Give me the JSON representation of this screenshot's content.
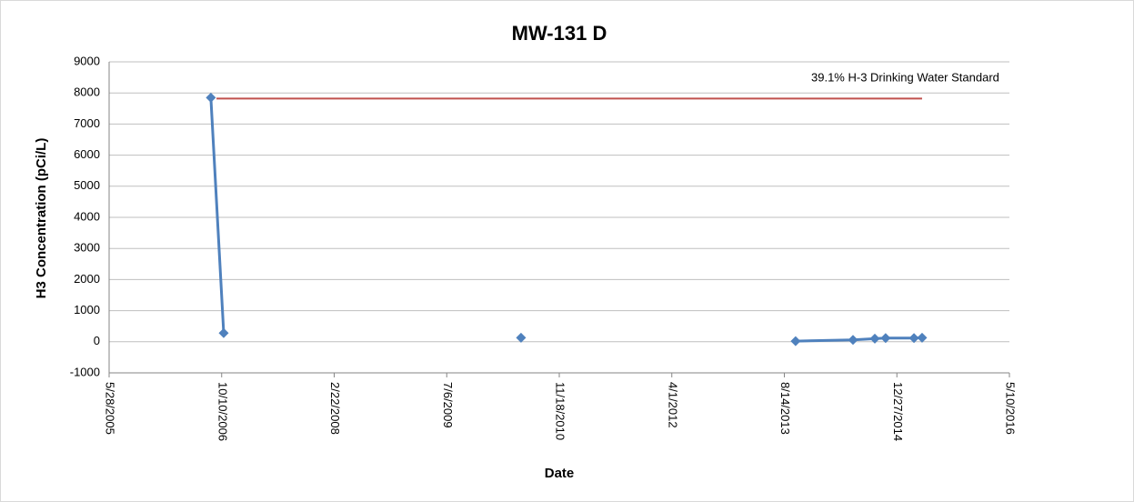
{
  "chart_data": {
    "type": "line",
    "title": "MW-131 D",
    "x_label": "Date",
    "y_label": "H3 Concentration (pCi/L)",
    "x": [
      "8/23/2006",
      "10/19/2006",
      null,
      "6/1/2010",
      null,
      "10/3/2013",
      "6/15/2014",
      "9/20/2014",
      "11/7/2014",
      "3/13/2015",
      "4/18/2015"
    ],
    "series": [
      {
        "name": "MW-131 D",
        "color": "#4f81bd",
        "values": [
          7850,
          280,
          null,
          130,
          null,
          20,
          60,
          100,
          120,
          120,
          130
        ]
      }
    ],
    "reference_line": {
      "label": "39.1% H-3 Drinking Water Standard",
      "value": 7820,
      "x": [
        "9/17/2006",
        "4/18/2015"
      ],
      "color": "#c0504d"
    },
    "xlim": [
      "5/28/2005",
      "5/10/2016"
    ],
    "xticks": [
      "5/28/2005",
      "10/10/2006",
      "2/22/2008",
      "7/6/2009",
      "11/18/2010",
      "4/1/2012",
      "8/14/2013",
      "12/27/2014",
      "5/10/2016"
    ],
    "ylim": [
      -1000,
      9000
    ],
    "yticks": [
      -1000,
      0,
      1000,
      2000,
      3000,
      4000,
      5000,
      6000,
      7000,
      8000,
      9000
    ],
    "grid": true
  }
}
